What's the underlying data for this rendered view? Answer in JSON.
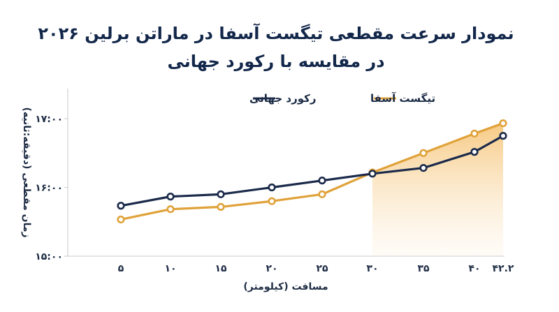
{
  "chart_data": {
    "type": "line",
    "title_line1": "نمودار سرعت مقطعی تیگست آسفا در ماراتن برلین ۲۰۲۶",
    "title_line2": "در مقایسه با رکورد جهانی",
    "xlabel": "مسافت (کیلومتر)",
    "ylabel": "زمان مقطعی (دقیقه:ثانیه)",
    "x": [
      5,
      10,
      15,
      20,
      25,
      30,
      35,
      40,
      42.2
    ],
    "x_tick_labels": [
      "۵",
      "۱۰",
      "۱۵",
      "۲۰",
      "۲۵",
      "۳۰",
      "۳۵",
      "۴۰",
      "۴۲.۲"
    ],
    "ylim": [
      900,
      1020
    ],
    "y_ticks": [
      900,
      960,
      1020
    ],
    "y_tick_labels": [
      "۱۵:۰۰",
      "۱۶:۰۰",
      "۱۷:۰۰"
    ],
    "grid": false,
    "legend_position": "top",
    "shaded_from_x": 30,
    "series": [
      {
        "name": "رکورد جهانی",
        "color": "#1b2a4a",
        "values": [
          944,
          952,
          954,
          960,
          966,
          972,
          977,
          991,
          1005
        ]
      },
      {
        "name": "تیگست آسفا",
        "color": "#e0a23a",
        "values": [
          932,
          941,
          943,
          948,
          954,
          973,
          990,
          1007,
          1016
        ]
      }
    ]
  }
}
